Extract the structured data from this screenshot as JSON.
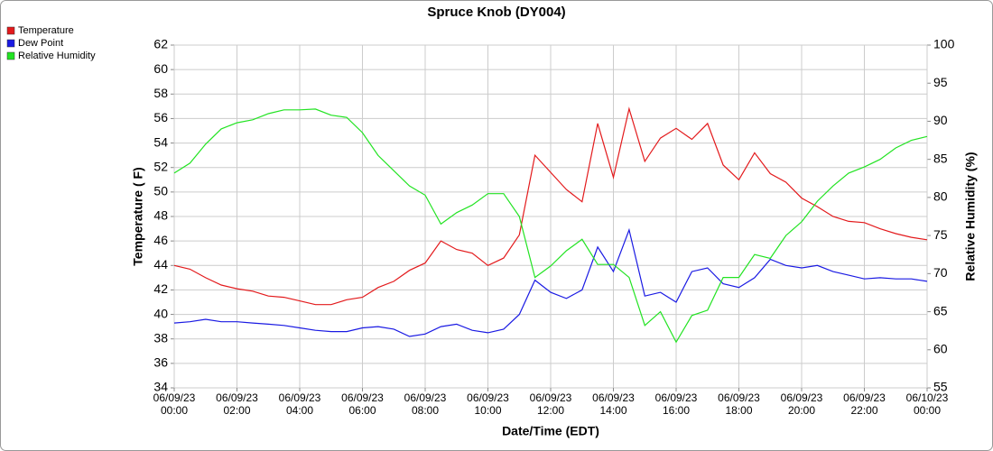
{
  "chart_data": {
    "type": "line",
    "title": "Spruce Knob (DY004)",
    "xlabel": "Date/Time (EDT)",
    "ylabel": "Temperature ( F)",
    "y2label": "Relative Humidity (%)",
    "x": [
      "06/09/23 00:00",
      "06/09/23 00:30",
      "06/09/23 01:00",
      "06/09/23 01:30",
      "06/09/23 02:00",
      "06/09/23 02:30",
      "06/09/23 03:00",
      "06/09/23 03:30",
      "06/09/23 04:00",
      "06/09/23 04:30",
      "06/09/23 05:00",
      "06/09/23 05:30",
      "06/09/23 06:00",
      "06/09/23 06:30",
      "06/09/23 07:00",
      "06/09/23 07:30",
      "06/09/23 08:00",
      "06/09/23 08:30",
      "06/09/23 09:00",
      "06/09/23 09:30",
      "06/09/23 10:00",
      "06/09/23 10:30",
      "06/09/23 11:00",
      "06/09/23 11:30",
      "06/09/23 12:00",
      "06/09/23 12:30",
      "06/09/23 13:00",
      "06/09/23 13:30",
      "06/09/23 14:00",
      "06/09/23 14:30",
      "06/09/23 15:00",
      "06/09/23 15:30",
      "06/09/23 16:00",
      "06/09/23 16:30",
      "06/09/23 17:00",
      "06/09/23 17:30",
      "06/09/23 18:00",
      "06/09/23 18:30",
      "06/09/23 19:00",
      "06/09/23 19:30",
      "06/09/23 20:00",
      "06/09/23 20:30",
      "06/09/23 21:00",
      "06/09/23 21:30",
      "06/09/23 22:00",
      "06/09/23 22:30",
      "06/09/23 23:00",
      "06/09/23 23:30",
      "06/10/23 00:00"
    ],
    "series": [
      {
        "name": "Temperature",
        "color": "#e31a1c",
        "values": [
          44.0,
          43.7,
          43.0,
          42.4,
          42.1,
          41.9,
          41.5,
          41.4,
          41.1,
          40.8,
          40.8,
          41.2,
          41.4,
          42.2,
          42.7,
          43.6,
          44.2,
          46.0,
          45.3,
          45.0,
          44.0,
          44.6,
          46.5,
          53.0,
          51.6,
          50.2,
          49.2,
          55.6,
          51.2,
          56.8,
          52.5,
          54.4,
          55.2,
          54.3,
          55.6,
          52.2,
          51.0,
          53.2,
          51.5,
          50.8,
          49.5,
          48.8,
          48.0,
          47.6,
          47.5,
          47.0,
          46.6,
          46.3,
          46.1
        ]
      },
      {
        "name": "Dew Point",
        "color": "#1a1ae3",
        "values": [
          39.3,
          39.4,
          39.6,
          39.4,
          39.4,
          39.3,
          39.2,
          39.1,
          38.9,
          38.7,
          38.6,
          38.6,
          38.9,
          39.0,
          38.8,
          38.2,
          38.4,
          39.0,
          39.2,
          38.7,
          38.5,
          38.8,
          40.0,
          42.8,
          41.8,
          41.3,
          42.0,
          45.5,
          43.5,
          46.9,
          41.5,
          41.8,
          41.0,
          43.5,
          43.8,
          42.5,
          42.2,
          43.0,
          44.5,
          44.0,
          43.8,
          44.0,
          43.5,
          43.2,
          42.9,
          43.0,
          42.9,
          42.9,
          42.7
        ]
      },
      {
        "name": "Relative Humidity",
        "color": "#22e322",
        "axis": "y2",
        "values": [
          83.2,
          84.5,
          87,
          89,
          89.8,
          90.2,
          91,
          91.5,
          91.5,
          91.6,
          90.8,
          90.5,
          88.5,
          85.5,
          83.5,
          81.5,
          80.3,
          76.5,
          78,
          79,
          80.5,
          80.5,
          77.5,
          69.5,
          71,
          73,
          74.5,
          71.2,
          71.2,
          69.5,
          63.2,
          65,
          61,
          64.5,
          65.2,
          69.5,
          69.5,
          72.5,
          72,
          75,
          76.8,
          79.5,
          81.5,
          83.2,
          84,
          85,
          86.5,
          87.5,
          88
        ]
      }
    ],
    "xlim": [
      "06/09/23 00:00",
      "06/10/23 00:00"
    ],
    "xticks": [
      "06/09/23 00:00",
      "06/09/23 02:00",
      "06/09/23 04:00",
      "06/09/23 06:00",
      "06/09/23 08:00",
      "06/09/23 10:00",
      "06/09/23 12:00",
      "06/09/23 14:00",
      "06/09/23 16:00",
      "06/09/23 18:00",
      "06/09/23 20:00",
      "06/09/23 22:00",
      "06/10/23 00:00"
    ],
    "ylim": [
      34,
      62
    ],
    "yticks": [
      34,
      36,
      38,
      40,
      42,
      44,
      46,
      48,
      50,
      52,
      54,
      56,
      58,
      60,
      62
    ],
    "y2lim": [
      55,
      100
    ],
    "y2ticks": [
      55,
      60,
      65,
      70,
      75,
      80,
      85,
      90,
      95,
      100
    ],
    "grid": true,
    "legend": "top-left"
  }
}
